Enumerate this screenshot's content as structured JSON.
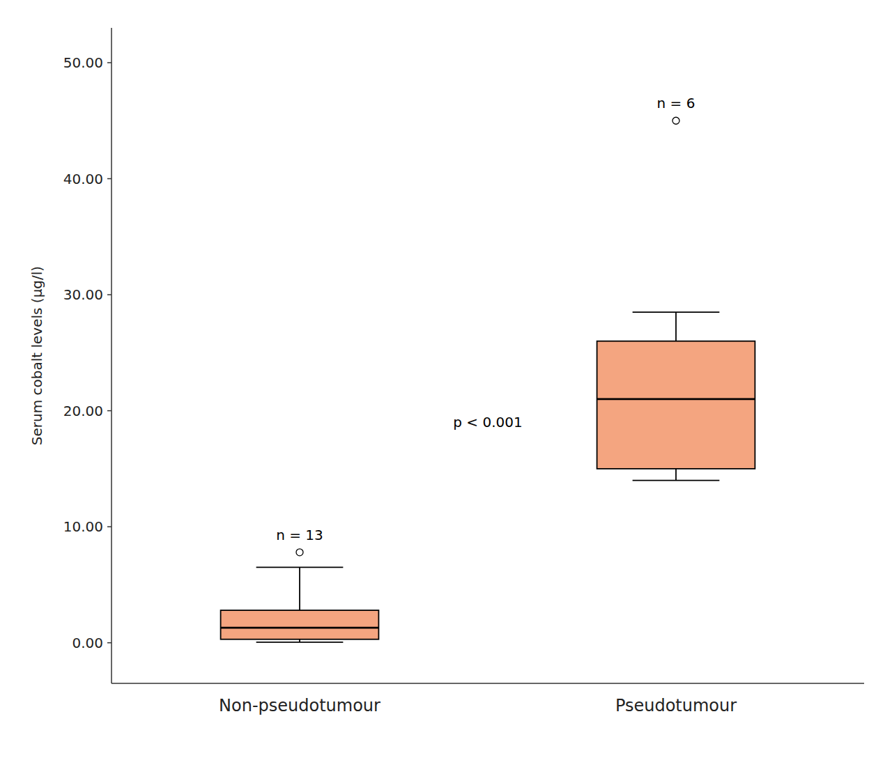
{
  "chart_data": {
    "type": "box",
    "categories": [
      "Non-pseudotumour",
      "Pseudotumour"
    ],
    "y_label": "Serum cobalt levels (μg/l)",
    "color": "#F4A580",
    "boxes": [
      {
        "q1": 0.3,
        "median": 1.3,
        "q3": 2.8,
        "whislo": 0.05,
        "whishi": 6.5,
        "fliers": [
          7.8
        ]
      },
      {
        "q1": 15.0,
        "median": 21.0,
        "q3": 26.0,
        "whislo": 14.0,
        "whishi": 28.5,
        "fliers": [
          45.0
        ]
      }
    ],
    "n_labels": [
      "n = 13",
      "n = 6"
    ],
    "annotations": [
      "p < 0.001"
    ],
    "ylim": [
      -3.5,
      53
    ],
    "yticks": [
      {
        "value": 0.0,
        "label": "0.00"
      },
      {
        "value": 10.0,
        "label": "10.00"
      },
      {
        "value": 20.0,
        "label": "20.00"
      },
      {
        "value": 30.0,
        "label": "30.00"
      },
      {
        "value": 40.0,
        "label": "40.00"
      },
      {
        "value": 50.0,
        "label": "50.00"
      }
    ],
    "grid": false
  }
}
